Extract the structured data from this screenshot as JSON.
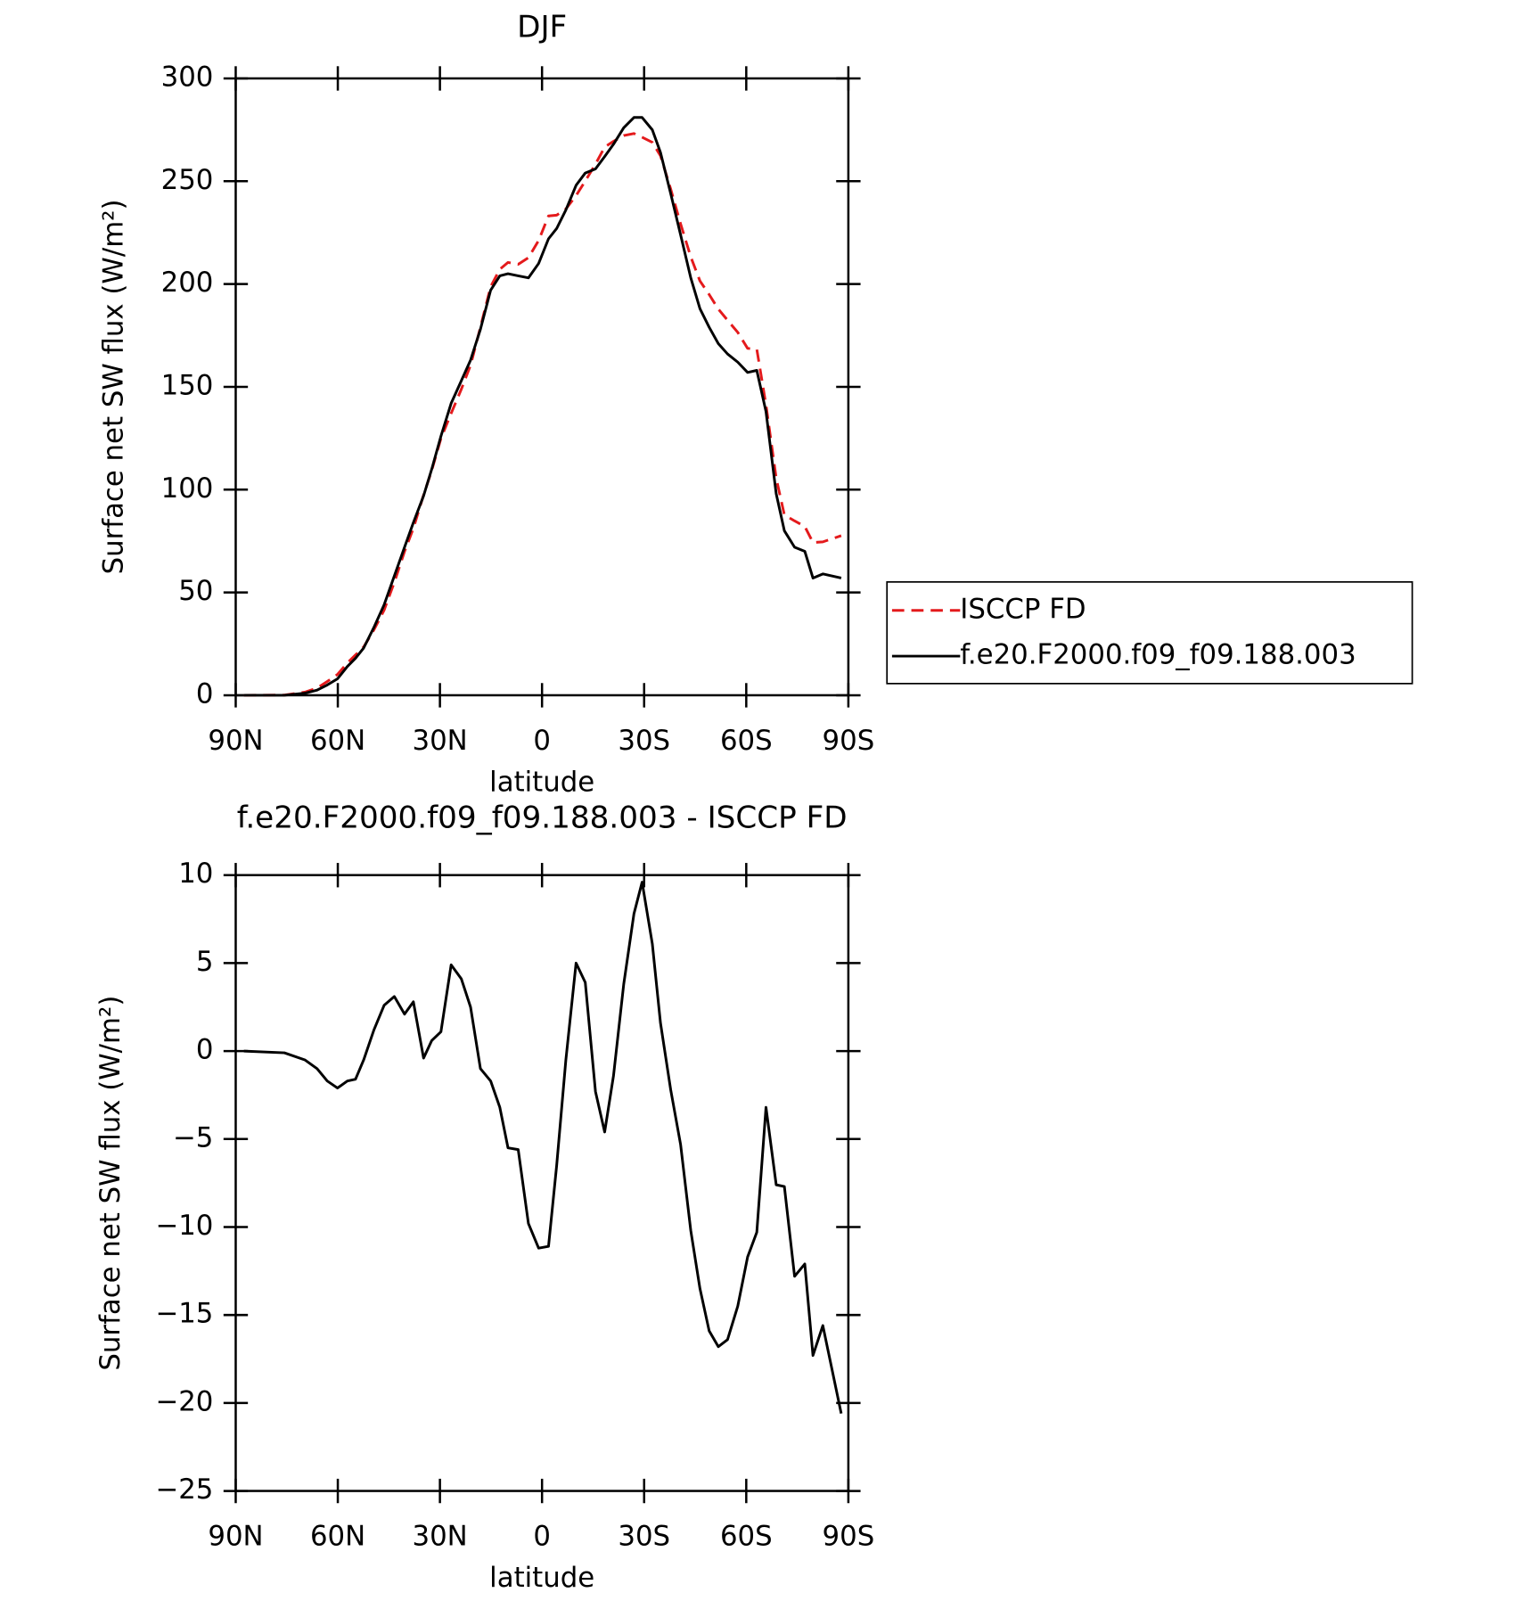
{
  "chart_data": [
    {
      "type": "line",
      "title": "DJF",
      "xlabel": "latitude",
      "ylabel": "Surface net SW flux (W/m²)",
      "x": [
        87.6,
        75.7,
        69.7,
        66.1,
        63.1,
        60.1,
        57.2,
        54.8,
        52.4,
        49.4,
        46.4,
        43.4,
        40.4,
        37.8,
        34.8,
        32.4,
        29.7,
        26.7,
        23.7,
        21.0,
        18.1,
        15.1,
        12.4,
        10.0,
        7.0,
        4.0,
        1.0,
        -1.9,
        -4.3,
        -7.0,
        -10.0,
        -12.7,
        -15.7,
        -18.4,
        -21.0,
        -24.0,
        -27.0,
        -29.4,
        -32.4,
        -34.8,
        -37.8,
        -40.7,
        -43.7,
        -46.4,
        -49.1,
        -51.8,
        -54.5,
        -57.5,
        -60.4,
        -63.1,
        -65.8,
        -68.8,
        -71.2,
        -74.2,
        -77.2,
        -79.6,
        -82.5,
        -87.9
      ],
      "series": [
        {
          "name": "ISCCP FD",
          "color": "#e41a1c",
          "linestyle": "dashed",
          "values": [
            0,
            0.1,
            1.5,
            3.5,
            6.7,
            10.1,
            15.7,
            19.6,
            23.5,
            31.8,
            41.4,
            54.9,
            69.9,
            81.2,
            97.4,
            109.4,
            124.9,
            137.1,
            148.9,
            160.5,
            179,
            198.7,
            207.2,
            210.5,
            209.6,
            212.8,
            221.2,
            233.1,
            233.5,
            236.5,
            243,
            250.1,
            258.3,
            266.6,
            269.4,
            272.2,
            273.2,
            271.4,
            268.9,
            262.4,
            246.2,
            229.3,
            213.2,
            201.5,
            194.9,
            187.8,
            182.4,
            176.5,
            168.7,
            168.3,
            141.2,
            105.6,
            87.7,
            84.8,
            82.1,
            74.3,
            74.6,
            77.6
          ]
        },
        {
          "name": "f.e20.F2000.f09_f09.188.003",
          "color": "#000000",
          "linestyle": "solid",
          "values": [
            0,
            0,
            1,
            2.5,
            5,
            8,
            14,
            18,
            23,
            33,
            44,
            58,
            72,
            84,
            97,
            110,
            126,
            142,
            153,
            163,
            178,
            197,
            204,
            205,
            204,
            203,
            210,
            222,
            227,
            236,
            248,
            254,
            256,
            262,
            268,
            276,
            281,
            281,
            275,
            264,
            244,
            224,
            203,
            188,
            179,
            171,
            166,
            162,
            157,
            158,
            138,
            98,
            80,
            72,
            70,
            57,
            59,
            57
          ]
        }
      ],
      "xlim": [
        90,
        -90
      ],
      "xticks": [
        {
          "value": 90,
          "label": "90N"
        },
        {
          "value": 60,
          "label": "60N"
        },
        {
          "value": 30,
          "label": "30N"
        },
        0,
        {
          "value": -30,
          "label": "30S"
        },
        {
          "value": -60,
          "label": "60S"
        },
        {
          "value": -90,
          "label": "90S"
        }
      ],
      "ylim": [
        0,
        300
      ],
      "yticks": [
        0,
        50,
        100,
        150,
        200,
        250,
        300
      ],
      "grid": false,
      "legend": "right"
    },
    {
      "type": "line",
      "title": "f.e20.F2000.f09_f09.188.003 - ISCCP FD",
      "xlabel": "latitude",
      "ylabel": "Surface net SW flux (W/m²)",
      "x": [
        87.6,
        75.7,
        69.7,
        66.1,
        63.1,
        60.1,
        57.2,
        54.8,
        52.4,
        49.4,
        46.4,
        43.4,
        40.4,
        37.8,
        34.8,
        32.4,
        29.7,
        26.7,
        23.7,
        21.0,
        18.1,
        15.1,
        12.4,
        10.0,
        7.0,
        4.0,
        1.0,
        -1.9,
        -4.3,
        -7.0,
        -10.0,
        -12.7,
        -15.7,
        -18.4,
        -21.0,
        -24.0,
        -27.0,
        -29.4,
        -32.4,
        -34.8,
        -37.8,
        -40.7,
        -43.7,
        -46.4,
        -49.1,
        -51.8,
        -54.5,
        -57.5,
        -60.4,
        -63.1,
        -65.8,
        -68.8,
        -71.2,
        -74.2,
        -77.2,
        -79.6,
        -82.5,
        -87.9
      ],
      "series": [
        {
          "color": "#000000",
          "linestyle": "solid",
          "values": [
            0,
            -0.1,
            -0.5,
            -1,
            -1.7,
            -2.1,
            -1.7,
            -1.6,
            -0.5,
            1.2,
            2.6,
            3.1,
            2.1,
            2.8,
            -0.4,
            0.6,
            1.1,
            4.9,
            4.1,
            2.5,
            -1,
            -1.7,
            -3.2,
            -5.5,
            -5.6,
            -9.8,
            -11.2,
            -11.1,
            -6.5,
            -0.5,
            5.0,
            3.9,
            -2.3,
            -4.6,
            -1.4,
            3.8,
            7.8,
            9.6,
            6.1,
            1.6,
            -2.2,
            -5.3,
            -10.2,
            -13.5,
            -15.9,
            -16.8,
            -16.4,
            -14.5,
            -11.7,
            -10.3,
            -3.2,
            -7.6,
            -7.7,
            -12.8,
            -12.1,
            -17.3,
            -15.6,
            -20.6
          ]
        }
      ],
      "xlim": [
        90,
        -90
      ],
      "xticks": [
        {
          "value": 90,
          "label": "90N"
        },
        {
          "value": 60,
          "label": "60N"
        },
        {
          "value": 30,
          "label": "30N"
        },
        0,
        {
          "value": -30,
          "label": "30S"
        },
        {
          "value": -60,
          "label": "60S"
        },
        {
          "value": -90,
          "label": "90S"
        }
      ],
      "ylim": [
        -25,
        10
      ],
      "yticks": [
        {
          "value": -25,
          "label": "−25"
        },
        {
          "value": -20,
          "label": "−20"
        },
        {
          "value": -15,
          "label": "−15"
        },
        {
          "value": -10,
          "label": "−10"
        },
        {
          "value": -5,
          "label": "−5"
        },
        0,
        5,
        10
      ],
      "grid": false
    }
  ]
}
